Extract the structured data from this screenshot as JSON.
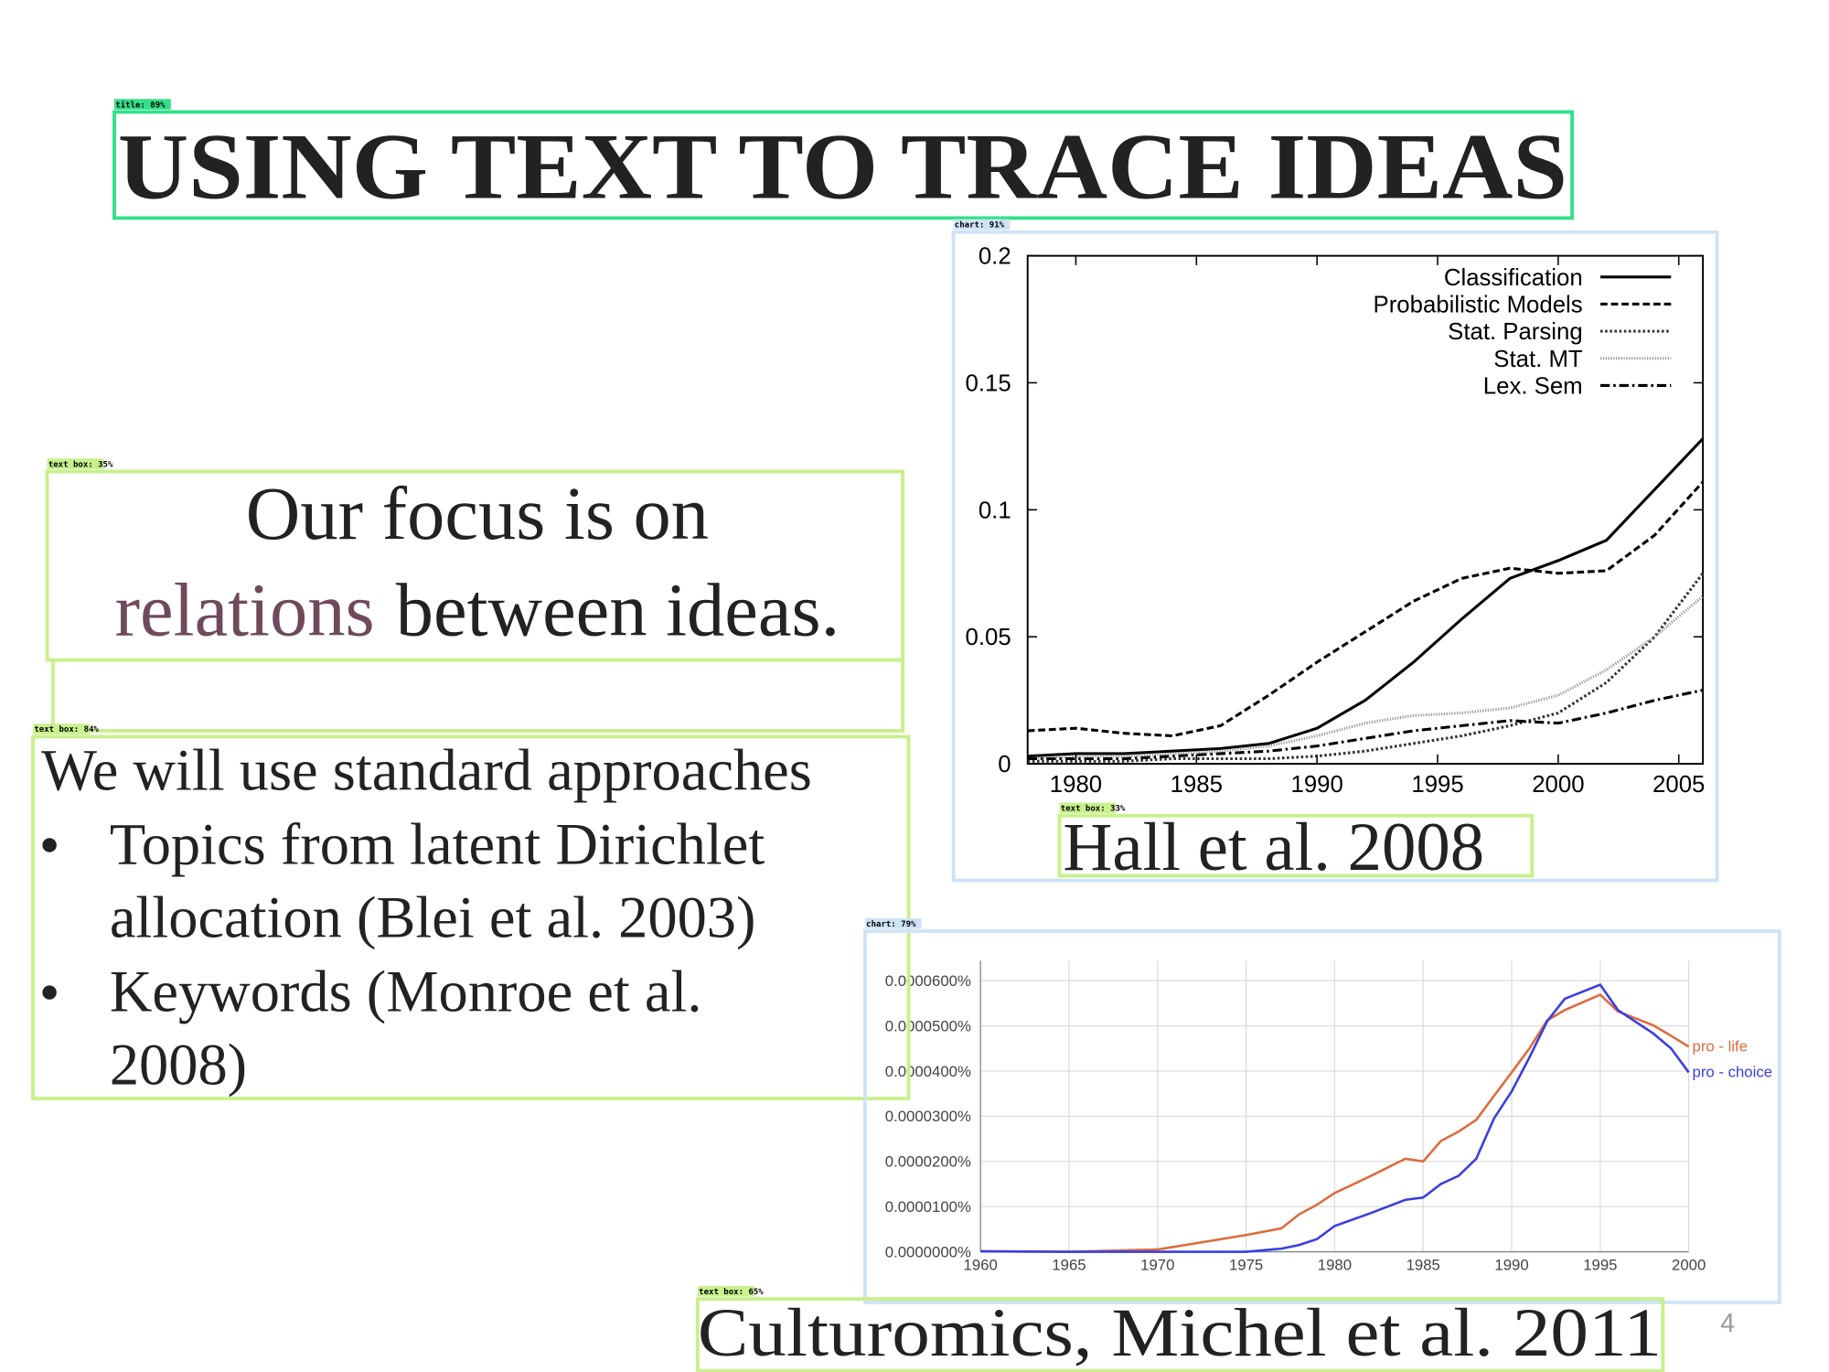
{
  "title": "USING TEXT TO TRACE IDEAS",
  "focus": {
    "line1": "Our focus is on",
    "highlight": "relations",
    "rest": "between ideas."
  },
  "body": {
    "intro": "We will use standard approaches",
    "bullets": [
      {
        "lines": [
          "Topics from latent Dirichlet",
          "allocation (Blei et al. 2003)"
        ]
      },
      {
        "lines": [
          "Keywords (Monroe et al.",
          "2008)"
        ]
      }
    ]
  },
  "captions": {
    "hall": "Hall et al. 2008",
    "culturomics": "Culturomics, Michel et al. 2011"
  },
  "page_number": "4",
  "detections": [
    {
      "label": "title: 89%"
    },
    {
      "label": "text box: 35%"
    },
    {
      "label": "text box: 84%"
    },
    {
      "label": "chart: 91%"
    },
    {
      "label": "text box: 33%"
    },
    {
      "label": "chart: 79%"
    },
    {
      "label": "text box: 65%"
    }
  ],
  "chart_data": [
    {
      "type": "line",
      "x": [
        1978,
        1980,
        1982,
        1984,
        1986,
        1988,
        1990,
        1992,
        1994,
        1996,
        1998,
        2000,
        2002,
        2004,
        2006
      ],
      "xlim": [
        1978,
        2006
      ],
      "xticks": [
        1980,
        1985,
        1990,
        1995,
        2000,
        2005
      ],
      "ylim": [
        0,
        0.2
      ],
      "yticks": [
        0,
        0.05,
        0.1,
        0.15,
        0.2
      ],
      "grid": false,
      "legend": "top-right",
      "series": [
        {
          "name": "Classification",
          "color": "#000000",
          "dash": "solid",
          "values": [
            0.003,
            0.004,
            0.004,
            0.005,
            0.006,
            0.008,
            0.014,
            0.025,
            0.04,
            0.057,
            0.073,
            0.08,
            0.088,
            0.108,
            0.128
          ]
        },
        {
          "name": "Probabilistic Models",
          "color": "#000000",
          "dash": "dashed",
          "values": [
            0.013,
            0.014,
            0.012,
            0.011,
            0.015,
            0.027,
            0.04,
            0.052,
            0.064,
            0.073,
            0.077,
            0.075,
            0.076,
            0.09,
            0.111
          ]
        },
        {
          "name": "Stat. Parsing",
          "color": "#333333",
          "dash": "dotted",
          "values": [
            0.001,
            0.001,
            0.001,
            0.002,
            0.002,
            0.002,
            0.003,
            0.005,
            0.008,
            0.011,
            0.015,
            0.02,
            0.032,
            0.05,
            0.075
          ]
        },
        {
          "name": "Stat. MT",
          "color": "#999999",
          "dash": "fine-dotted",
          "values": [
            0.002,
            0.003,
            0.003,
            0.004,
            0.005,
            0.007,
            0.011,
            0.016,
            0.019,
            0.02,
            0.022,
            0.027,
            0.037,
            0.05,
            0.066
          ]
        },
        {
          "name": "Lex. Sem",
          "color": "#000000",
          "dash": "dash-dot",
          "values": [
            0.002,
            0.002,
            0.002,
            0.003,
            0.004,
            0.005,
            0.007,
            0.01,
            0.013,
            0.015,
            0.017,
            0.016,
            0.02,
            0.025,
            0.029
          ]
        }
      ]
    },
    {
      "type": "line",
      "x": [
        1960,
        1965,
        1970,
        1975,
        1977,
        1978,
        1979,
        1980,
        1982,
        1984,
        1985,
        1986,
        1987,
        1988,
        1989,
        1990,
        1991,
        1992,
        1993,
        1995,
        1996,
        1998,
        1999,
        2000
      ],
      "xlim": [
        1960,
        2000
      ],
      "xticks": [
        1960,
        1965,
        1970,
        1975,
        1980,
        1985,
        1990,
        1995,
        2000
      ],
      "ylim": [
        0,
        6e-05
      ],
      "yticks": [
        {
          "value": 0,
          "label": "0.0000000%"
        },
        {
          "value": 1e-05,
          "label": "0.0000100%"
        },
        {
          "value": 2e-05,
          "label": "0.0000200%"
        },
        {
          "value": 3e-05,
          "label": "0.0000300%"
        },
        {
          "value": 4e-05,
          "label": "0.0000400%"
        },
        {
          "value": 5e-05,
          "label": "0.0000500%"
        },
        {
          "value": 6e-05,
          "label": "0.0000600%"
        }
      ],
      "grid": true,
      "legend": "line-end",
      "series": [
        {
          "name": "pro - life",
          "color": "#dc6c3c",
          "dash": "solid",
          "values": [
            1e-07,
            0,
            5e-07,
            3.7e-06,
            5.2e-06,
            8.3e-06,
            1.04e-05,
            1.3e-05,
            1.67e-05,
            2.06e-05,
            2e-05,
            2.45e-05,
            2.66e-05,
            2.92e-05,
            3.45e-05,
            3.97e-05,
            4.5e-05,
            5.12e-05,
            5.35e-05,
            5.69e-05,
            5.32e-05,
            5.01e-05,
            4.78e-05,
            4.54e-05
          ]
        },
        {
          "name": "pro - choice",
          "color": "#3a3ee0",
          "dash": "solid",
          "values": [
            1e-07,
            0,
            0,
            0,
            7e-07,
            1.5e-06,
            2.8e-06,
            5.7e-06,
            8.5e-06,
            1.15e-05,
            1.2e-05,
            1.5e-05,
            1.68e-05,
            2.06e-05,
            2.95e-05,
            3.55e-05,
            4.3e-05,
            5.1e-05,
            5.6e-05,
            5.91e-05,
            5.35e-05,
            4.83e-05,
            4.5e-05,
            3.97e-05
          ]
        }
      ]
    }
  ]
}
